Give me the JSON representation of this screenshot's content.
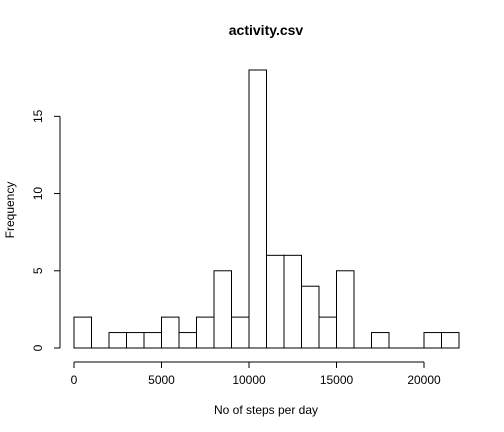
{
  "chart_data": {
    "type": "bar",
    "title": "activity.csv",
    "xlabel": "No of steps per day",
    "ylabel": "Frequency",
    "bin_width": 1000,
    "bins": [
      {
        "start": 0,
        "end": 1000,
        "count": 2
      },
      {
        "start": 1000,
        "end": 2000,
        "count": 0
      },
      {
        "start": 2000,
        "end": 3000,
        "count": 1
      },
      {
        "start": 3000,
        "end": 4000,
        "count": 1
      },
      {
        "start": 4000,
        "end": 5000,
        "count": 1
      },
      {
        "start": 5000,
        "end": 6000,
        "count": 2
      },
      {
        "start": 6000,
        "end": 7000,
        "count": 1
      },
      {
        "start": 7000,
        "end": 8000,
        "count": 2
      },
      {
        "start": 8000,
        "end": 9000,
        "count": 5
      },
      {
        "start": 9000,
        "end": 10000,
        "count": 2
      },
      {
        "start": 10000,
        "end": 11000,
        "count": 18
      },
      {
        "start": 11000,
        "end": 12000,
        "count": 6
      },
      {
        "start": 12000,
        "end": 13000,
        "count": 6
      },
      {
        "start": 13000,
        "end": 14000,
        "count": 4
      },
      {
        "start": 14000,
        "end": 15000,
        "count": 2
      },
      {
        "start": 15000,
        "end": 16000,
        "count": 5
      },
      {
        "start": 16000,
        "end": 17000,
        "count": 0
      },
      {
        "start": 17000,
        "end": 18000,
        "count": 1
      },
      {
        "start": 18000,
        "end": 19000,
        "count": 0
      },
      {
        "start": 19000,
        "end": 20000,
        "count": 0
      },
      {
        "start": 20000,
        "end": 21000,
        "count": 1
      },
      {
        "start": 21000,
        "end": 22000,
        "count": 1
      }
    ],
    "xlim": [
      0,
      22000
    ],
    "ylim": [
      0,
      18
    ],
    "x_ticks": [
      0,
      5000,
      10000,
      15000,
      20000
    ],
    "y_ticks": [
      0,
      5,
      10,
      15
    ],
    "grid": false,
    "legend": "none"
  }
}
